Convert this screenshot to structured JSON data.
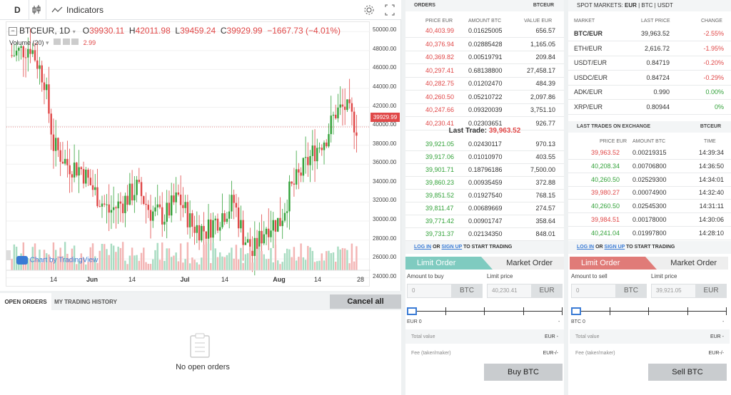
{
  "toolbar": {
    "interval": "D",
    "indicators_label": "Indicators"
  },
  "chart": {
    "symbol": "BTCEUR, 1D",
    "open_label": "O",
    "open": "39930.11",
    "high_label": "H",
    "high": "42011.98",
    "low_label": "L",
    "low": "39459.24",
    "close_label": "C",
    "close": "39929.99",
    "change": "−1667.73 (−4.01%)",
    "volume_label": "Volume (20)",
    "volume_value": "2.99",
    "watermark": "Chart by TradingView",
    "last_price_tag": "39929.99",
    "y_ticks": [
      "50000.00",
      "48000.00",
      "46000.00",
      "44000.00",
      "42000.00",
      "40000.00",
      "38000.00",
      "36000.00",
      "34000.00",
      "32000.00",
      "30000.00",
      "28000.00",
      "26000.00",
      "24000.00"
    ],
    "x_ticks": [
      "14",
      "Jun",
      "14",
      "Jul",
      "14",
      "Aug",
      "14",
      "28"
    ]
  },
  "chart_data": {
    "type": "candlestick",
    "symbol": "BTCEUR",
    "interval": "1D",
    "ylim": [
      23000,
      51000
    ],
    "x_ticks": [
      "14",
      "Jun",
      "14",
      "Jul",
      "14",
      "Aug",
      "14",
      "28"
    ],
    "last_close": 39929.99
  },
  "orders": {
    "title": "ORDERS",
    "pair": "BTCEUR",
    "columns": [
      "PRICE EUR",
      "AMOUNT BTC",
      "VALUE EUR"
    ],
    "asks": [
      [
        "40,403.99",
        "0.01625005",
        "656.57"
      ],
      [
        "40,376.94",
        "0.02885428",
        "1,165.05"
      ],
      [
        "40,369.82",
        "0.00519791",
        "209.84"
      ],
      [
        "40,297.41",
        "0.68138800",
        "27,458.17"
      ],
      [
        "40,282.75",
        "0.01202470",
        "484.39"
      ],
      [
        "40,260.50",
        "0.05210722",
        "2,097.86"
      ],
      [
        "40,247.66",
        "0.09320039",
        "3,751.10"
      ],
      [
        "40,230.41",
        "0.02303651",
        "926.77"
      ]
    ],
    "last_trade_label": "Last Trade:",
    "last_trade_value": "39,963.52",
    "bids": [
      [
        "39,921.05",
        "0.02430117",
        "970.13"
      ],
      [
        "39,917.06",
        "0.01010970",
        "403.55"
      ],
      [
        "39,901.71",
        "0.18796186",
        "7,500.00"
      ],
      [
        "39,860.23",
        "0.00935459",
        "372.88"
      ],
      [
        "39,851.52",
        "0.01927540",
        "768.15"
      ],
      [
        "39,811.47",
        "0.00689669",
        "274.57"
      ],
      [
        "39,771.42",
        "0.00901747",
        "358.64"
      ],
      [
        "39,731.37",
        "0.02134350",
        "848.01"
      ]
    ]
  },
  "spot": {
    "title": "SPOT MARKETS:",
    "filters": [
      "EUR",
      "BTC",
      "USDT"
    ],
    "columns": [
      "MARKET",
      "LAST PRICE",
      "CHANGE"
    ],
    "rows": [
      [
        "BTC/EUR",
        "39,963.52",
        "-2.55%",
        "red"
      ],
      [
        "ETH/EUR",
        "2,616.72",
        "-1.95%",
        "red"
      ],
      [
        "USDT/EUR",
        "0.84719",
        "-0.20%",
        "red"
      ],
      [
        "USDC/EUR",
        "0.84724",
        "-0.29%",
        "red"
      ],
      [
        "ADK/EUR",
        "0.990",
        "0.00%",
        "green"
      ],
      [
        "XRP/EUR",
        "0.80944",
        "0%",
        "green"
      ]
    ]
  },
  "trades": {
    "title": "LAST TRADES ON EXCHANGE",
    "pair": "BTCEUR",
    "columns": [
      "PRICE EUR",
      "AMOUNT BTC",
      "TIME"
    ],
    "rows": [
      [
        "39,963.52",
        "0.00219315",
        "14:39:34",
        "red"
      ],
      [
        "40,208.34",
        "0.00706800",
        "14:36:50",
        "green"
      ],
      [
        "40,260.50",
        "0.02529300",
        "14:34:01",
        "green"
      ],
      [
        "39,980.27",
        "0.00074900",
        "14:32:40",
        "red"
      ],
      [
        "40,260.50",
        "0.02545300",
        "14:31:11",
        "green"
      ],
      [
        "39,984.51",
        "0.00178000",
        "14:30:06",
        "red"
      ],
      [
        "40,241.04",
        "0.01997800",
        "14:28:10",
        "green"
      ]
    ]
  },
  "login": {
    "log_in": "LOG IN",
    "or": "OR",
    "sign_up": "SIGN UP",
    "rest": "TO START TRADING"
  },
  "buy": {
    "limit_tab": "Limit Order",
    "market_tab": "Market Order",
    "amount_label": "Amount to buy",
    "price_label": "Limit price",
    "amount_placeholder": "0",
    "amount_unit": "BTC",
    "price_value": "40,230.41",
    "price_unit": "EUR",
    "balance": "EUR 0",
    "balance_dash": "-",
    "total_label": "Total value",
    "total_value": "EUR -",
    "fee_label": "Fee (taker/maker)",
    "fee_value": "EUR-/-",
    "submit": "Buy BTC"
  },
  "sell": {
    "limit_tab": "Limit Order",
    "market_tab": "Market Order",
    "amount_label": "Amount to sell",
    "price_label": "Limit price",
    "amount_placeholder": "0",
    "amount_unit": "BTC",
    "price_value": "39,921.05",
    "price_unit": "EUR",
    "balance": "BTC 0",
    "balance_dash": "-",
    "total_label": "Total value",
    "total_value": "EUR -",
    "fee_label": "Fee (taker/maker)",
    "fee_value": "EUR-/-",
    "submit": "Sell BTC"
  },
  "open_orders": {
    "tabs": [
      "OPEN ORDERS",
      "MY TRADING HISTORY"
    ],
    "cancel_all": "Cancel all",
    "empty": "No open orders"
  },
  "colors": {
    "up": "#33a23a",
    "down": "#e04848",
    "buy": "#7fcbc0",
    "sell": "#e07b78",
    "button": "#c9cccf"
  }
}
